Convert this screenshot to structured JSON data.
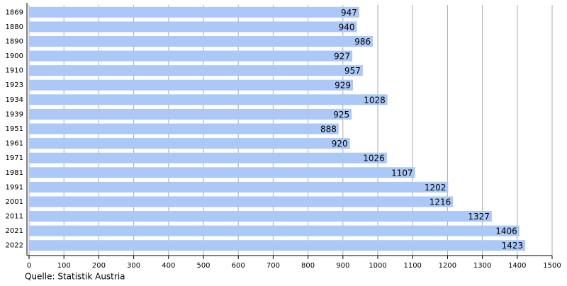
{
  "chart_data": {
    "type": "bar",
    "orientation": "horizontal",
    "categories": [
      "1869",
      "1880",
      "1890",
      "1900",
      "1910",
      "1923",
      "1934",
      "1939",
      "1951",
      "1961",
      "1971",
      "1981",
      "1991",
      "2001",
      "2011",
      "2021",
      "2022"
    ],
    "values": [
      947,
      940,
      986,
      927,
      957,
      929,
      1028,
      925,
      888,
      920,
      1026,
      1107,
      1202,
      1216,
      1327,
      1406,
      1423
    ],
    "color": "#abc8f7",
    "xlim": [
      0,
      1500
    ],
    "xticks": [
      0,
      100,
      200,
      300,
      400,
      500,
      600,
      700,
      800,
      900,
      1000,
      1100,
      1200,
      1300,
      1400,
      1500
    ],
    "grid": true,
    "source": "Quelle: Statistik Austria"
  }
}
